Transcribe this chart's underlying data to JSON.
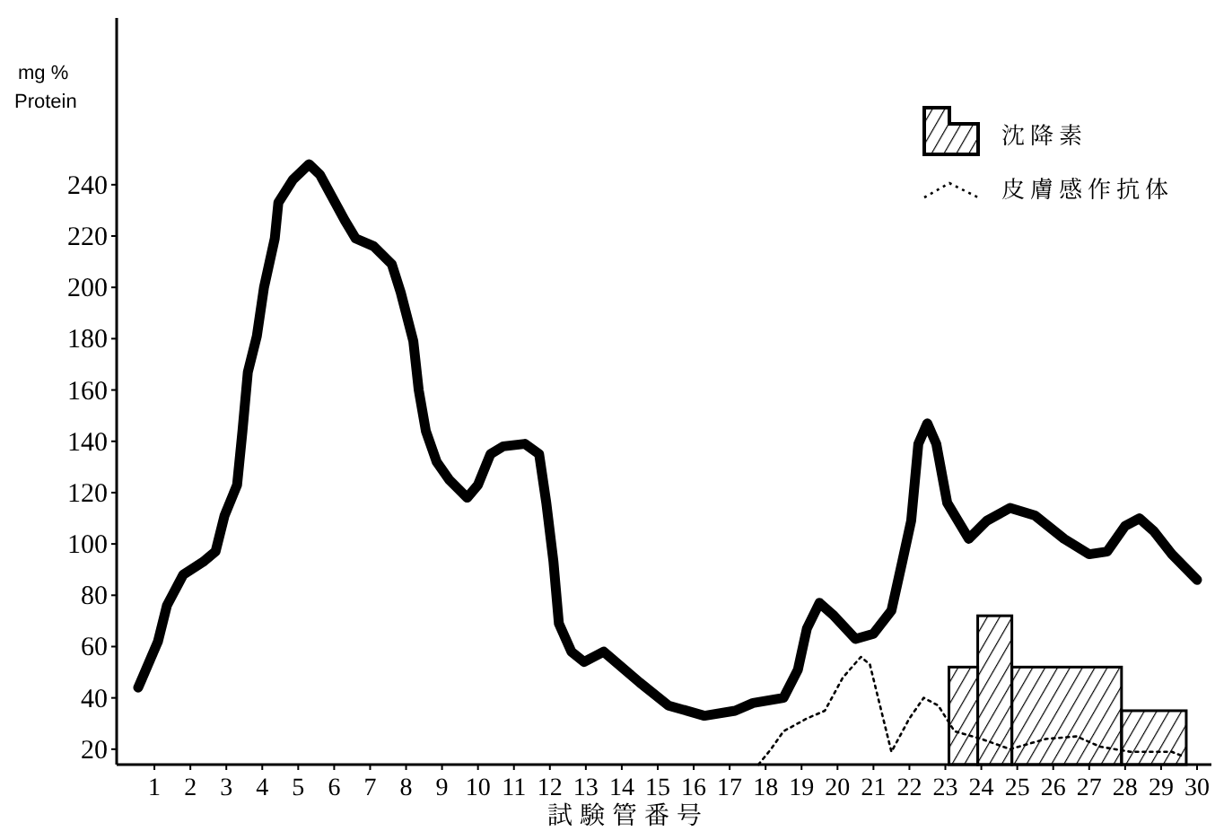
{
  "chart_data": {
    "type": "line",
    "xlabel": "試験管番号",
    "ylabel": "mg % Protein",
    "xlim": [
      -0.05,
      30.4
    ],
    "ylim": [
      14,
      305
    ],
    "xticks": [
      1,
      2,
      3,
      4,
      5,
      6,
      7,
      8,
      9,
      10,
      11,
      12,
      13,
      14,
      15,
      16,
      17,
      18,
      19,
      20,
      21,
      22,
      23,
      24,
      25,
      26,
      27,
      28,
      29,
      30
    ],
    "yticks": [
      20,
      40,
      60,
      80,
      100,
      120,
      140,
      160,
      180,
      200,
      220,
      240
    ],
    "grid": false,
    "legend": "top right",
    "marker": "none",
    "series": [
      {
        "name": "沈降素",
        "type": "histogram",
        "color": "#000000",
        "bins": [
          23.1,
          23.9,
          24.85,
          27.9,
          29.7
        ],
        "values": [
          52,
          72,
          52,
          35
        ]
      },
      {
        "name": "皮膚感作抗体",
        "color": "#000000",
        "line_style": "dotted",
        "x": [
          17.8,
          18.15,
          18.5,
          19.15,
          19.65,
          20.15,
          20.65,
          20.9,
          21.5,
          22.0,
          22.4,
          22.8,
          23.25,
          24.0,
          24.8,
          25.8,
          26.65,
          27.3,
          28.15,
          29.3,
          29.65
        ],
        "values": [
          14,
          20,
          27,
          32,
          35,
          48,
          56,
          53,
          19,
          32,
          40,
          37,
          27,
          24,
          20,
          24,
          25,
          21,
          19,
          19,
          17
        ]
      },
      {
        "color": "#000000",
        "line_style": "solid",
        "x": [
          0.55,
          1.1,
          1.35,
          1.8,
          2.35,
          2.7,
          2.95,
          3.3,
          3.45,
          3.6,
          3.85,
          4.05,
          4.35,
          4.45,
          4.85,
          5.3,
          5.6,
          5.95,
          6.3,
          6.6,
          7.1,
          7.6,
          7.85,
          8.2,
          8.35,
          8.55,
          8.85,
          9.2,
          9.7,
          10.0,
          10.35,
          10.7,
          11.3,
          11.7,
          11.9,
          12.1,
          12.25,
          12.6,
          12.95,
          13.5,
          14.5,
          15.3,
          16.3,
          17.15,
          17.65,
          18.5,
          18.9,
          19.15,
          19.5,
          19.9,
          20.5,
          21.0,
          21.5,
          21.8,
          22.05,
          22.25,
          22.5,
          22.75,
          23.05,
          23.65,
          24.15,
          24.8,
          25.5,
          26.3,
          27.0,
          27.5,
          28.0,
          28.4,
          28.8,
          29.3,
          30.0
        ],
        "values": [
          44,
          62,
          76,
          88,
          93,
          97,
          111,
          123,
          144,
          167,
          181,
          200,
          219,
          233,
          242,
          248,
          244,
          235,
          226,
          219,
          216,
          209,
          198,
          179,
          160,
          144,
          132,
          125,
          118,
          123,
          135,
          138,
          139,
          135,
          116,
          93,
          69,
          58,
          54,
          58,
          46,
          37,
          33,
          35,
          38,
          40,
          51,
          67,
          77,
          72,
          63,
          65,
          74,
          93,
          109,
          139,
          147,
          139,
          116,
          102,
          109,
          114,
          111,
          102,
          96,
          97,
          107,
          110,
          105,
          96,
          86
        ]
      }
    ]
  }
}
